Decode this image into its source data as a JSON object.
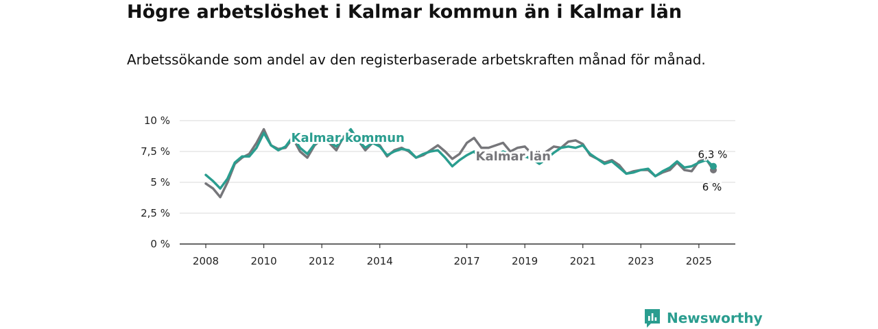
{
  "header": {
    "title": "Högre arbetslöshet i Kalmar kommun än i Kalmar län",
    "subtitle": "Arbetssökande som andel av den registerbaserade arbetskraften månad för månad."
  },
  "brand": {
    "name": "Newsworthy",
    "color": "#2a9d8f",
    "icon": "newsworthy-logo-icon"
  },
  "chart_data": {
    "type": "line",
    "title": "Högre arbetslöshet i Kalmar kommun än i Kalmar län",
    "subtitle": "Arbetssökande som andel av den registerbaserade arbetskraften månad för månad.",
    "xlabel": "",
    "ylabel": "",
    "ylim": [
      0,
      10
    ],
    "xlim": [
      2007.9,
      2026.0
    ],
    "grid": true,
    "y_ticks": [
      {
        "value": 0,
        "label": "0 %"
      },
      {
        "value": 2.5,
        "label": "2,5 %"
      },
      {
        "value": 5,
        "label": "5 %"
      },
      {
        "value": 7.5,
        "label": "7,5 %"
      },
      {
        "value": 10,
        "label": "10 %"
      }
    ],
    "x_ticks": [
      {
        "value": 2008,
        "label": "2008"
      },
      {
        "value": 2010,
        "label": "2010"
      },
      {
        "value": 2012,
        "label": "2012"
      },
      {
        "value": 2014,
        "label": "2014"
      },
      {
        "value": 2017,
        "label": "2017"
      },
      {
        "value": 2019,
        "label": "2019"
      },
      {
        "value": 2021,
        "label": "2021"
      },
      {
        "value": 2023,
        "label": "2023"
      },
      {
        "value": 2025,
        "label": "2025"
      }
    ],
    "series": [
      {
        "name": "Kalmar län",
        "color": "#76767a",
        "end_label": "6 %",
        "x": [
          2008.0,
          2008.25,
          2008.5,
          2008.75,
          2009.0,
          2009.25,
          2009.5,
          2009.75,
          2010.0,
          2010.25,
          2010.5,
          2010.75,
          2011.0,
          2011.25,
          2011.5,
          2011.75,
          2012.0,
          2012.25,
          2012.5,
          2012.75,
          2013.0,
          2013.25,
          2013.5,
          2013.75,
          2014.0,
          2014.25,
          2014.5,
          2014.75,
          2015.0,
          2015.25,
          2015.5,
          2015.75,
          2016.0,
          2016.25,
          2016.5,
          2016.75,
          2017.0,
          2017.25,
          2017.5,
          2017.75,
          2018.0,
          2018.25,
          2018.5,
          2018.75,
          2019.0,
          2019.25,
          2019.5,
          2019.75,
          2020.0,
          2020.25,
          2020.5,
          2020.75,
          2021.0,
          2021.25,
          2021.5,
          2021.75,
          2022.0,
          2022.25,
          2022.5,
          2022.75,
          2023.0,
          2023.25,
          2023.5,
          2023.75,
          2024.0,
          2024.25,
          2024.5,
          2024.75,
          2025.0,
          2025.25,
          2025.5
        ],
        "values": [
          4.9,
          4.5,
          3.8,
          5.0,
          6.5,
          7.0,
          7.3,
          8.2,
          9.3,
          8.0,
          7.7,
          7.8,
          8.6,
          7.5,
          7.0,
          8.0,
          8.5,
          8.2,
          7.6,
          8.7,
          9.2,
          8.4,
          7.6,
          8.2,
          8.0,
          7.1,
          7.6,
          7.8,
          7.5,
          7.0,
          7.2,
          7.6,
          8.0,
          7.5,
          6.9,
          7.3,
          8.2,
          8.6,
          7.8,
          7.8,
          8.0,
          8.2,
          7.5,
          7.8,
          7.9,
          7.3,
          7.0,
          7.5,
          7.9,
          7.8,
          8.3,
          8.4,
          8.1,
          7.2,
          6.9,
          6.6,
          6.8,
          6.4,
          5.7,
          5.9,
          6.0,
          6.0,
          5.5,
          5.8,
          6.0,
          6.6,
          6.0,
          5.9,
          6.7,
          6.9,
          6.0
        ]
      },
      {
        "name": "Kalmar kommun",
        "color": "#2a9d8f",
        "end_label": "6,3 %",
        "x": [
          2008.0,
          2008.25,
          2008.5,
          2008.75,
          2009.0,
          2009.25,
          2009.5,
          2009.75,
          2010.0,
          2010.25,
          2010.5,
          2010.75,
          2011.0,
          2011.25,
          2011.5,
          2011.75,
          2012.0,
          2012.25,
          2012.5,
          2012.75,
          2013.0,
          2013.25,
          2013.5,
          2013.75,
          2014.0,
          2014.25,
          2014.5,
          2014.75,
          2015.0,
          2015.25,
          2015.5,
          2015.75,
          2016.0,
          2016.25,
          2016.5,
          2016.75,
          2017.0,
          2017.25,
          2017.5,
          2017.75,
          2018.0,
          2018.25,
          2018.5,
          2018.75,
          2019.0,
          2019.25,
          2019.5,
          2019.75,
          2020.0,
          2020.25,
          2020.5,
          2020.75,
          2021.0,
          2021.25,
          2021.5,
          2021.75,
          2022.0,
          2022.25,
          2022.5,
          2022.75,
          2023.0,
          2023.25,
          2023.5,
          2023.75,
          2024.0,
          2024.25,
          2024.5,
          2024.75,
          2025.0,
          2025.25,
          2025.5
        ],
        "values": [
          5.6,
          5.1,
          4.5,
          5.3,
          6.6,
          7.1,
          7.1,
          7.8,
          9.0,
          8.0,
          7.6,
          7.9,
          8.7,
          7.8,
          7.3,
          8.1,
          8.5,
          8.3,
          7.9,
          8.6,
          9.3,
          8.4,
          7.8,
          8.2,
          7.9,
          7.2,
          7.5,
          7.7,
          7.6,
          7.0,
          7.3,
          7.5,
          7.6,
          7.0,
          6.3,
          6.8,
          7.2,
          7.5,
          6.8,
          6.9,
          7.2,
          7.5,
          7.3,
          7.0,
          7.1,
          6.9,
          6.5,
          6.9,
          7.4,
          7.8,
          7.9,
          7.8,
          8.0,
          7.3,
          6.9,
          6.5,
          6.7,
          6.2,
          5.7,
          5.8,
          6.0,
          6.1,
          5.5,
          5.9,
          6.2,
          6.7,
          6.2,
          6.3,
          6.6,
          6.8,
          6.3
        ]
      }
    ],
    "annotations": [
      {
        "series": "Kalmar kommun",
        "text": "Kalmar kommun",
        "x": 2012.9,
        "y": 8.6
      },
      {
        "series": "Kalmar län",
        "text": "Kalmar län",
        "x": 2018.6,
        "y": 7.1
      }
    ]
  }
}
